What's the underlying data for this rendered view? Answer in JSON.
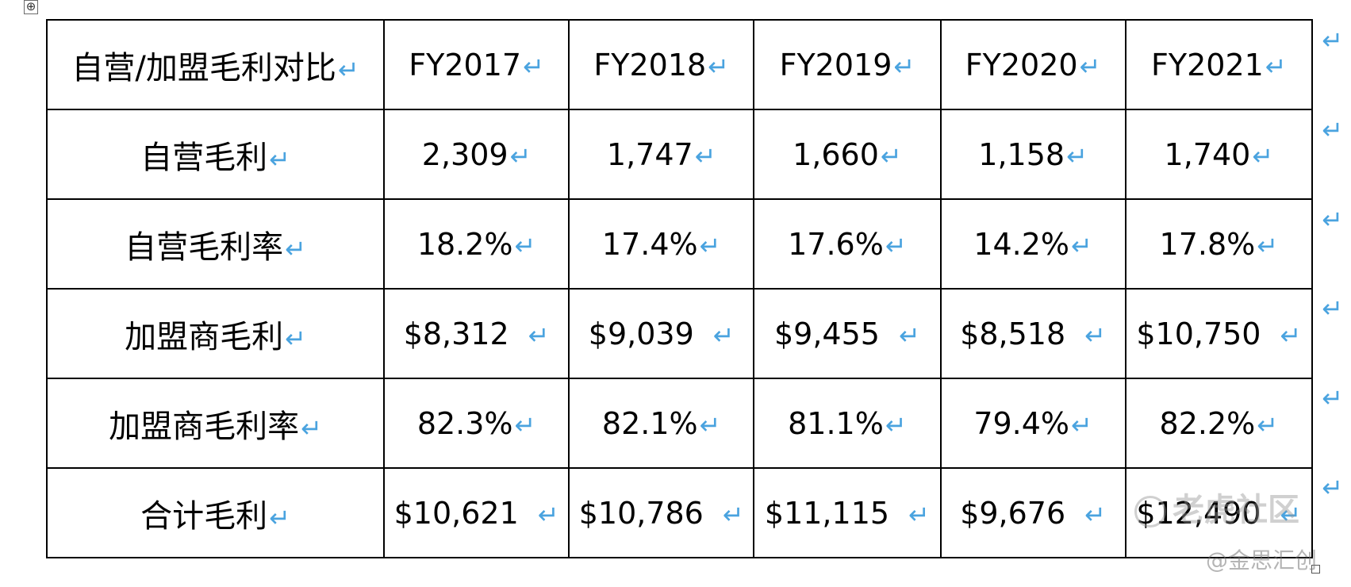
{
  "table": {
    "header": [
      "自营/加盟毛利对比",
      "FY2017",
      "FY2018",
      "FY2019",
      "FY2020",
      "FY2021"
    ],
    "rows": [
      {
        "label": "自营毛利",
        "values": [
          "2,309",
          "1,747",
          "1,660",
          "1,158",
          "1,740"
        ]
      },
      {
        "label": "自营毛利率",
        "values": [
          "18.2%",
          "17.4%",
          "17.6%",
          "14.2%",
          "17.8%"
        ]
      },
      {
        "label": "加盟商毛利",
        "values": [
          "$8,312",
          "$9,039",
          "$9,455",
          "$8,518",
          "$10,750"
        ]
      },
      {
        "label": "加盟商毛利率",
        "values": [
          "82.3%",
          "82.1%",
          "81.1%",
          "79.4%",
          "82.2%"
        ]
      },
      {
        "label": "合计毛利",
        "values": [
          "$10,621",
          "$10,786",
          "$11,115",
          "$9,676",
          "$12,490"
        ]
      }
    ]
  },
  "paragraph_mark": "↵",
  "move_handle_icon": "⊕",
  "watermark": {
    "text": "老虎社区",
    "source": "@金思汇创"
  }
}
